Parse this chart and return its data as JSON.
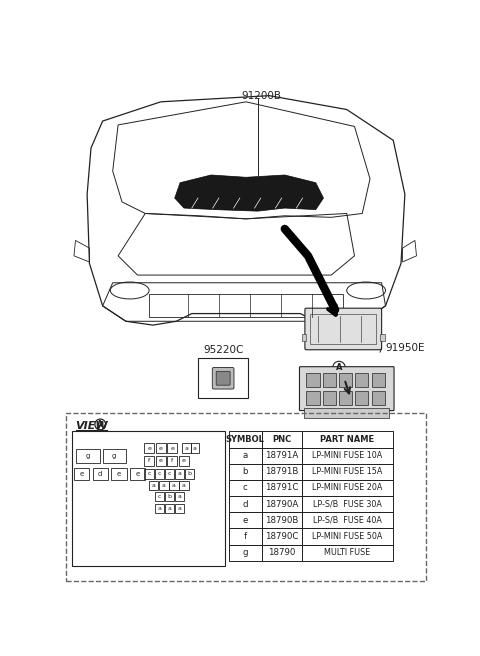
{
  "bg_color": "#ffffff",
  "line_color": "#222222",
  "part_label_91200B": "91200B",
  "part_label_91950E": "91950E",
  "part_label_95220C": "95220C",
  "view_label": "VIEW",
  "circle_a_label": "A",
  "table_headers": [
    "SYMBOL",
    "PNC",
    "PART NAME"
  ],
  "table_rows": [
    [
      "a",
      "18791A",
      "LP-MINI FUSE 10A"
    ],
    [
      "b",
      "18791B",
      "LP-MINI FUSE 15A"
    ],
    [
      "c",
      "18791C",
      "LP-MINI FUSE 20A"
    ],
    [
      "d",
      "18790A",
      "LP-S/B  FUSE 30A"
    ],
    [
      "e",
      "18790B",
      "LP-S/B  FUSE 40A"
    ],
    [
      "f",
      "18790C",
      "LP-MINI FUSE 50A"
    ],
    [
      "g",
      "18790",
      "MULTI FUSE"
    ]
  ],
  "fuse_rows": {
    "row_top_g": [
      "g",
      "g"
    ],
    "row_top_eeaaa": [
      "e",
      "e",
      "e",
      "a",
      "a"
    ],
    "row2_fe": [
      "f",
      "e",
      "f",
      "e"
    ],
    "row3_left": [
      "e",
      "d",
      "e",
      "e"
    ],
    "row3_right": [
      "c",
      "c",
      "c",
      "a",
      "b"
    ],
    "row4": [
      "a",
      "a",
      "a",
      "a"
    ],
    "row5": [
      "c",
      "b",
      "a"
    ],
    "row6": [
      "a",
      "a",
      "a"
    ]
  }
}
